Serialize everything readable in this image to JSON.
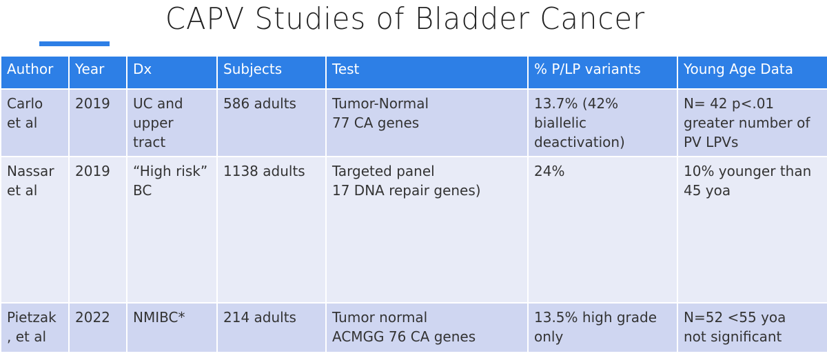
{
  "header": {
    "title": "CAPV Studies of Bladder Cancer"
  },
  "table": {
    "columns": [
      "Author",
      "Year",
      "Dx",
      "Subjects",
      "Test",
      "% P/LP variants",
      "Young Age Data"
    ],
    "rows": [
      [
        "Carlo\net al",
        "2019",
        "UC and\nupper\ntract",
        "586 adults",
        "Tumor-Normal\n77 CA genes",
        "13.7%  (42%\nbiallelic\ndeactivation)",
        "N= 42   p<.01\ngreater number of\nPV LPVs"
      ],
      [
        "Nassar\net al",
        "2019",
        "“High risk”\nBC",
        "1138 adults",
        "Targeted panel\n17 DNA repair genes)",
        "24%",
        "10% younger than\n45 yoa"
      ],
      [
        "Pietzak\n, et al",
        "2022",
        "NMIBC*",
        "214 adults",
        "Tumor normal\nACMGG 76 CA genes",
        "13.5%  high grade\nonly",
        "N=52 <55 yoa\nnot significant"
      ]
    ]
  }
}
